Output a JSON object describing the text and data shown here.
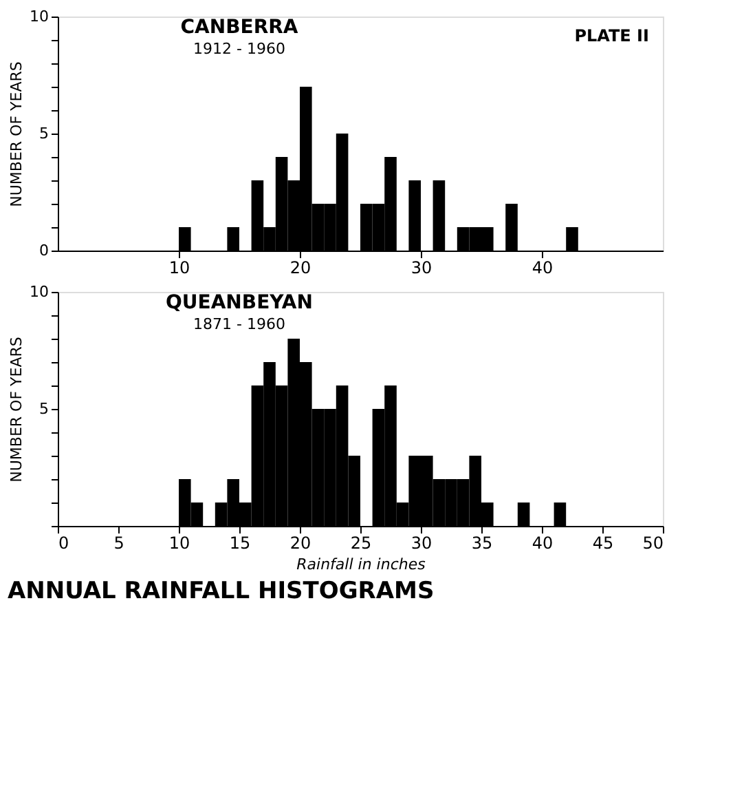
{
  "chart_data": [
    {
      "type": "histogram",
      "title": "CANBERRA",
      "subtitle": "1912 - 1960",
      "ylabel": "NUMBER OF YEARS",
      "annotations": [
        "PLATE II"
      ],
      "bins": [
        10,
        11,
        12,
        13,
        14,
        15,
        16,
        17,
        18,
        19,
        20,
        21,
        22,
        23,
        24,
        25,
        26,
        27,
        28,
        29,
        30,
        31,
        32,
        33,
        34,
        35,
        36,
        37,
        38,
        39,
        40,
        41,
        42,
        43
      ],
      "values": [
        1,
        0,
        0,
        0,
        1,
        0,
        3,
        1,
        4,
        3,
        7,
        2,
        2,
        5,
        0,
        2,
        2,
        4,
        0,
        3,
        0,
        3,
        0,
        1,
        1,
        1,
        0,
        2,
        0,
        0,
        0,
        0,
        1
      ],
      "color": "#000000",
      "xlim": [
        0,
        50
      ],
      "xticks": [
        10,
        20,
        30,
        40
      ],
      "ylim": [
        0,
        10
      ],
      "yticks": [
        0,
        {
          "value": 1,
          "label": null
        },
        {
          "value": 2,
          "label": null
        },
        {
          "value": 3,
          "label": null
        },
        {
          "value": 4,
          "label": null
        },
        5,
        {
          "value": 6,
          "label": null
        },
        {
          "value": 7,
          "label": null
        },
        {
          "value": 8,
          "label": null
        },
        {
          "value": 9,
          "label": null
        },
        10
      ],
      "grid": false
    },
    {
      "type": "histogram",
      "title": "QUEANBEYAN",
      "subtitle": "1871 - 1960",
      "ylabel": "NUMBER OF YEARS",
      "xlabel": "Rainfall in inches",
      "annotations": [
        "ANNUAL RAINFALL HISTOGRAMS"
      ],
      "bins": [
        10,
        11,
        12,
        13,
        14,
        15,
        16,
        17,
        18,
        19,
        20,
        21,
        22,
        23,
        24,
        25,
        26,
        27,
        28,
        29,
        30,
        31,
        32,
        33,
        34,
        35,
        36,
        37,
        38,
        39,
        40,
        41,
        42
      ],
      "values": [
        2,
        1,
        0,
        1,
        2,
        1,
        6,
        7,
        6,
        8,
        7,
        5,
        5,
        6,
        3,
        0,
        5,
        6,
        1,
        3,
        3,
        2,
        2,
        2,
        3,
        1,
        0,
        0,
        1,
        0,
        0,
        1
      ],
      "color": "#000000",
      "xlim": [
        0,
        50
      ],
      "xticks": [
        0,
        5,
        10,
        15,
        20,
        25,
        30,
        35,
        40,
        45,
        50
      ],
      "ylim": [
        0,
        10
      ],
      "yticks": [
        {
          "value": 0,
          "label": null
        },
        {
          "value": 1,
          "label": null
        },
        {
          "value": 2,
          "label": null
        },
        {
          "value": 3,
          "label": null
        },
        {
          "value": 4,
          "label": null
        },
        5,
        {
          "value": 6,
          "label": null
        },
        {
          "value": 7,
          "label": null
        },
        {
          "value": 8,
          "label": null
        },
        {
          "value": 9,
          "label": null
        },
        10
      ],
      "grid": false
    }
  ]
}
